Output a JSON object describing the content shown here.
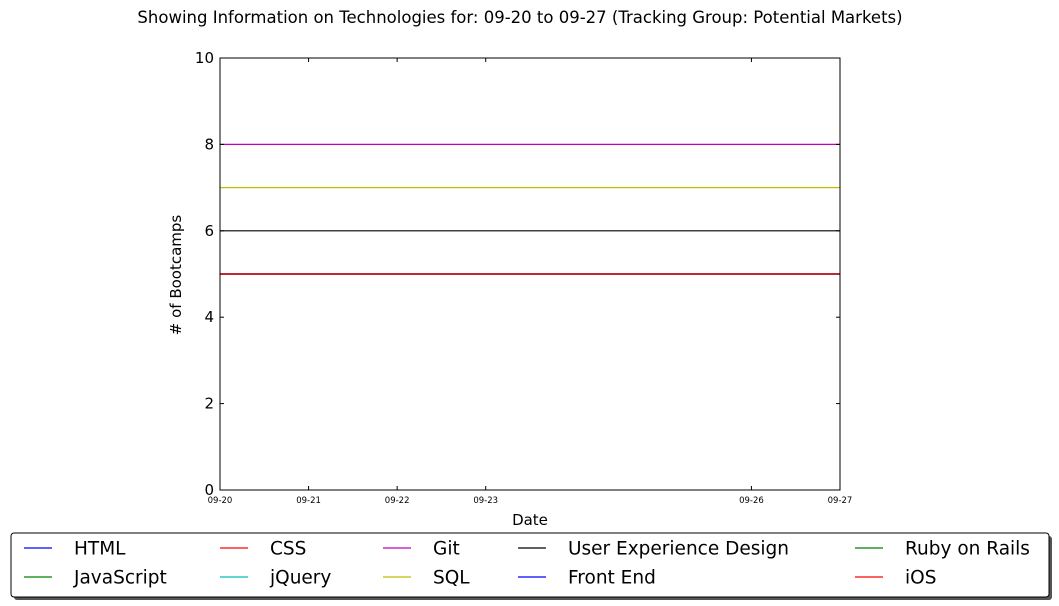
{
  "chart_data": {
    "type": "line",
    "title": "Showing Information on Technologies for: 09-20 to 09-27 (Tracking Group: Potential Markets)",
    "xlabel": "Date",
    "ylabel": "# of Bootcamps",
    "ylim": [
      0,
      10
    ],
    "yticks": [
      0,
      2,
      4,
      6,
      8,
      10
    ],
    "xlim": [
      "09-20",
      "09-27"
    ],
    "xticks": [
      "09-20",
      "09-21",
      "09-22",
      "09-23",
      "09-26",
      "09-27"
    ],
    "x": [
      "09-20",
      "09-21",
      "09-22",
      "09-23",
      "09-26",
      "09-27"
    ],
    "grid": false,
    "legend_position": "bottom",
    "series": [
      {
        "name": "HTML",
        "color": "#0000ff",
        "values": [
          5,
          5,
          5,
          5,
          5,
          5
        ]
      },
      {
        "name": "JavaScript",
        "color": "#008000",
        "values": [
          5,
          5,
          5,
          5,
          5,
          5
        ]
      },
      {
        "name": "CSS",
        "color": "#ff0000",
        "values": [
          5,
          5,
          5,
          5,
          5,
          5
        ]
      },
      {
        "name": "jQuery",
        "color": "#00bfbf",
        "values": [
          5,
          5,
          5,
          5,
          5,
          5
        ]
      },
      {
        "name": "Git",
        "color": "#bf00bf",
        "values": [
          8,
          8,
          8,
          8,
          8,
          8
        ]
      },
      {
        "name": "SQL",
        "color": "#bfbf00",
        "values": [
          7,
          7,
          7,
          7,
          7,
          7
        ]
      },
      {
        "name": "User Experience Design",
        "color": "#000000",
        "values": [
          6,
          6,
          6,
          6,
          6,
          6
        ]
      },
      {
        "name": "Front End",
        "color": "#0000ff",
        "values": [
          5,
          5,
          5,
          5,
          5,
          5
        ]
      },
      {
        "name": "Ruby on Rails",
        "color": "#008000",
        "values": [
          5,
          5,
          5,
          5,
          5,
          5
        ]
      },
      {
        "name": "iOS",
        "color": "#ff0000",
        "values": [
          5,
          5,
          5,
          5,
          5,
          5
        ]
      }
    ]
  }
}
